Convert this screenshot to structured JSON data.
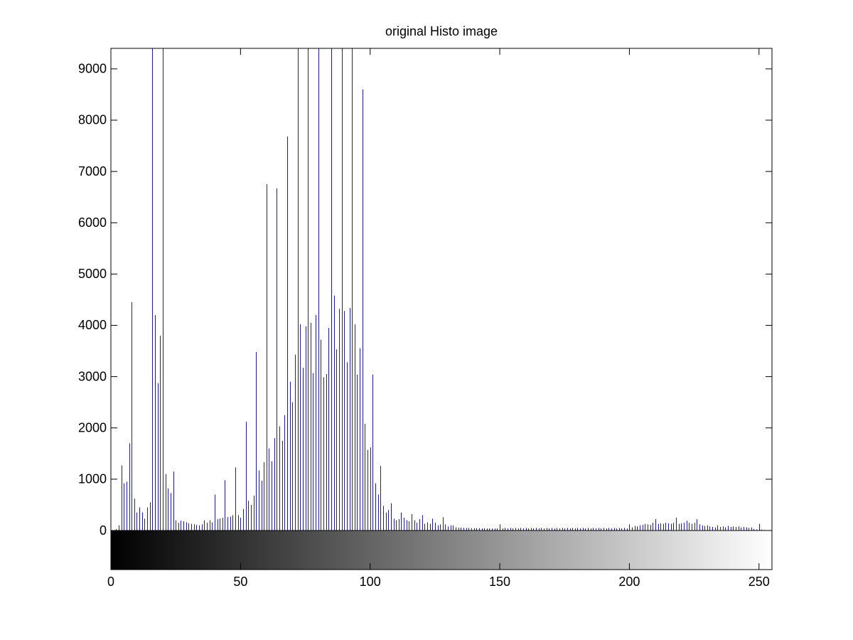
{
  "chart_data": {
    "type": "stem",
    "title": "original Histo image",
    "color": "#1c1c9c",
    "x": [
      0,
      1,
      2,
      3,
      4,
      5,
      6,
      7,
      8,
      9,
      10,
      11,
      12,
      13,
      14,
      15,
      16,
      17,
      18,
      19,
      20,
      21,
      22,
      23,
      24,
      25,
      26,
      27,
      28,
      29,
      30,
      31,
      32,
      33,
      34,
      35,
      36,
      37,
      38,
      39,
      40,
      41,
      42,
      43,
      44,
      45,
      46,
      47,
      48,
      49,
      50,
      51,
      52,
      53,
      54,
      55,
      56,
      57,
      58,
      59,
      60,
      61,
      62,
      63,
      64,
      65,
      66,
      67,
      68,
      69,
      70,
      71,
      72,
      73,
      74,
      75,
      76,
      77,
      78,
      79,
      80,
      81,
      82,
      83,
      84,
      85,
      86,
      87,
      88,
      89,
      90,
      91,
      92,
      93,
      94,
      95,
      96,
      97,
      98,
      99,
      100,
      101,
      102,
      103,
      104,
      105,
      106,
      107,
      108,
      109,
      110,
      111,
      112,
      113,
      114,
      115,
      116,
      117,
      118,
      119,
      120,
      121,
      122,
      123,
      124,
      125,
      126,
      127,
      128,
      129,
      130,
      131,
      132,
      133,
      134,
      135,
      136,
      137,
      138,
      139,
      140,
      141,
      142,
      143,
      144,
      145,
      146,
      147,
      148,
      149,
      150,
      151,
      152,
      153,
      154,
      155,
      156,
      157,
      158,
      159,
      160,
      161,
      162,
      163,
      164,
      165,
      166,
      167,
      168,
      169,
      170,
      171,
      172,
      173,
      174,
      175,
      176,
      177,
      178,
      179,
      180,
      181,
      182,
      183,
      184,
      185,
      186,
      187,
      188,
      189,
      190,
      191,
      192,
      193,
      194,
      195,
      196,
      197,
      198,
      199,
      200,
      201,
      202,
      203,
      204,
      205,
      206,
      207,
      208,
      209,
      210,
      211,
      212,
      213,
      214,
      215,
      216,
      217,
      218,
      219,
      220,
      221,
      222,
      223,
      224,
      225,
      226,
      227,
      228,
      229,
      230,
      231,
      232,
      233,
      234,
      235,
      236,
      237,
      238,
      239,
      240,
      241,
      242,
      243,
      244,
      245,
      246,
      247,
      248,
      249,
      250,
      251,
      252,
      253,
      254,
      255
    ],
    "values": [
      0,
      0,
      30,
      100,
      1270,
      920,
      950,
      1700,
      4450,
      620,
      350,
      450,
      350,
      230,
      450,
      550,
      12000,
      4200,
      2870,
      3800,
      11000,
      1100,
      820,
      730,
      1150,
      200,
      150,
      190,
      180,
      160,
      140,
      130,
      120,
      110,
      100,
      120,
      200,
      150,
      200,
      160,
      700,
      220,
      230,
      250,
      980,
      260,
      270,
      300,
      1230,
      300,
      250,
      420,
      2120,
      580,
      500,
      680,
      3480,
      1170,
      970,
      1330,
      6750,
      1600,
      1350,
      1800,
      6670,
      2030,
      1750,
      2250,
      7680,
      2900,
      2500,
      3430,
      11000,
      4020,
      3170,
      3980,
      11500,
      4050,
      3070,
      4200,
      12000,
      3720,
      2990,
      3050,
      3950,
      11000,
      4580,
      3530,
      4320,
      10500,
      4280,
      3280,
      4340,
      12500,
      4020,
      3040,
      3550,
      8600,
      2080,
      1570,
      1620,
      3040,
      920,
      700,
      1260,
      480,
      350,
      400,
      530,
      230,
      200,
      220,
      350,
      250,
      200,
      180,
      320,
      200,
      150,
      220,
      300,
      130,
      160,
      130,
      230,
      150,
      100,
      120,
      260,
      120,
      80,
      100,
      100,
      60,
      55,
      55,
      50,
      50,
      50,
      45,
      45,
      45,
      45,
      40,
      45,
      40,
      40,
      40,
      40,
      40,
      120,
      40,
      50,
      40,
      50,
      40,
      50,
      40,
      50,
      40,
      50,
      40,
      50,
      40,
      50,
      40,
      50,
      40,
      50,
      40,
      50,
      40,
      50,
      40,
      50,
      40,
      50,
      40,
      50,
      40,
      50,
      40,
      50,
      40,
      50,
      40,
      50,
      40,
      50,
      40,
      50,
      40,
      50,
      40,
      50,
      40,
      50,
      40,
      50,
      40,
      120,
      60,
      90,
      80,
      100,
      110,
      130,
      120,
      110,
      150,
      220,
      130,
      140,
      130,
      150,
      140,
      130,
      150,
      250,
      130,
      140,
      150,
      190,
      150,
      130,
      150,
      220,
      120,
      100,
      90,
      100,
      80,
      70,
      60,
      100,
      70,
      80,
      60,
      90,
      70,
      80,
      70,
      80,
      60,
      70,
      60,
      50,
      60,
      30,
      20,
      130,
      20,
      10,
      5,
      5,
      0
    ],
    "xlim": [
      0,
      255
    ],
    "xticks": [
      0,
      50,
      100,
      150,
      200,
      250
    ],
    "ylim": [
      0,
      9400
    ],
    "yticks": [
      0,
      1000,
      2000,
      3000,
      4000,
      5000,
      6000,
      7000,
      8000,
      9000
    ]
  }
}
